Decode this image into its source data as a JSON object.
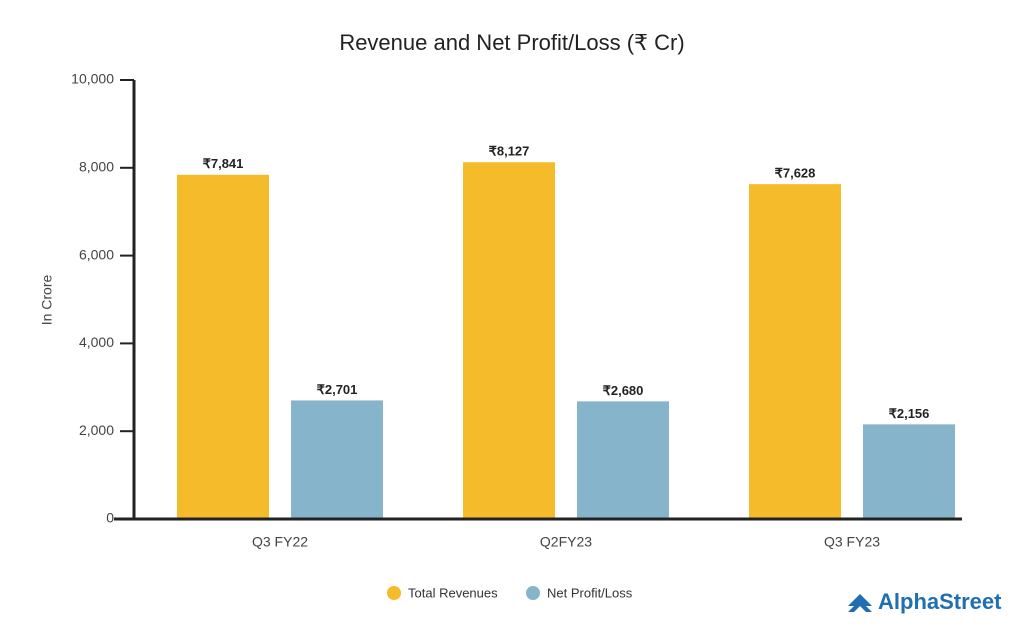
{
  "chart_data": {
    "type": "bar",
    "title": "Revenue and Net Profit/Loss (₹ Cr)",
    "y_label": "In Crore",
    "categories": [
      "Q3 FY22",
      "Q2FY23",
      "Q3 FY23"
    ],
    "series": [
      {
        "name": "Total Revenues",
        "color": "#f5bb2b",
        "values": [
          7841,
          8127,
          7628
        ],
        "value_labels": [
          "₹7,841",
          "₹8,127",
          "₹7,628"
        ]
      },
      {
        "name": "Net Profit/Loss",
        "color": "#86b4ca",
        "values": [
          2701,
          2680,
          2156
        ],
        "value_labels": [
          "₹2,701",
          "₹2,680",
          "₹2,156"
        ]
      }
    ],
    "ylim": [
      0,
      10000
    ],
    "yticks": [
      0,
      {
        "value": 2000,
        "label": "2,000"
      },
      {
        "value": 4000,
        "label": "4,000"
      },
      {
        "value": 6000,
        "label": "6,000"
      },
      {
        "value": 8000,
        "label": "8,000"
      },
      {
        "value": 10000,
        "label": "10,000"
      }
    ],
    "grid": false,
    "legend": "bottom"
  },
  "logo": "AlphaStreet"
}
